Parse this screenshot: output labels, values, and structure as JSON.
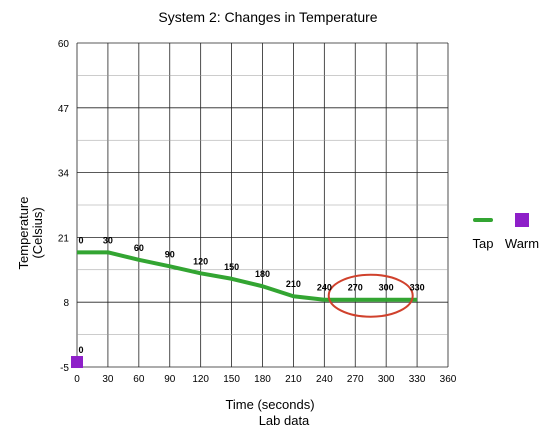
{
  "chart_data": {
    "type": "line",
    "title": "System 2: Changes in Temperature",
    "xlabel": "Time (seconds)",
    "caption": "Lab data",
    "ylabel_line1": "Temperature",
    "ylabel_line2": "(Celsius)",
    "xlim": [
      0,
      360
    ],
    "ylim": [
      -5,
      60
    ],
    "xticks": [
      "0",
      "30",
      "60",
      "90",
      "120",
      "150",
      "180",
      "210",
      "240",
      "270",
      "300",
      "330",
      "360"
    ],
    "yticks": [
      "60",
      "47",
      "34",
      "21",
      "8",
      "-5"
    ],
    "grid": true,
    "legend_position": "right",
    "series": [
      {
        "name": "Tap",
        "color": "#33a532",
        "x": [
          0,
          30,
          60,
          90,
          120,
          150,
          180,
          210,
          240,
          270,
          300,
          330
        ],
        "y": [
          18,
          18,
          16.5,
          15.2,
          13.8,
          12.7,
          11.2,
          9.2,
          8.5,
          8.5,
          8.5,
          8.5
        ],
        "point_labels": [
          "0",
          "30",
          "60",
          "90",
          "120",
          "150",
          "180",
          "210",
          "240",
          "270",
          "300",
          "330"
        ]
      },
      {
        "name": "Warm",
        "color": "#8e1fc9",
        "x": [
          0
        ],
        "y": [
          -4
        ],
        "point_labels": [
          "0"
        ]
      }
    ],
    "annotation": {
      "type": "ellipse",
      "color": "#d0412c",
      "x_center": 285,
      "y_center": 9.3
    }
  }
}
